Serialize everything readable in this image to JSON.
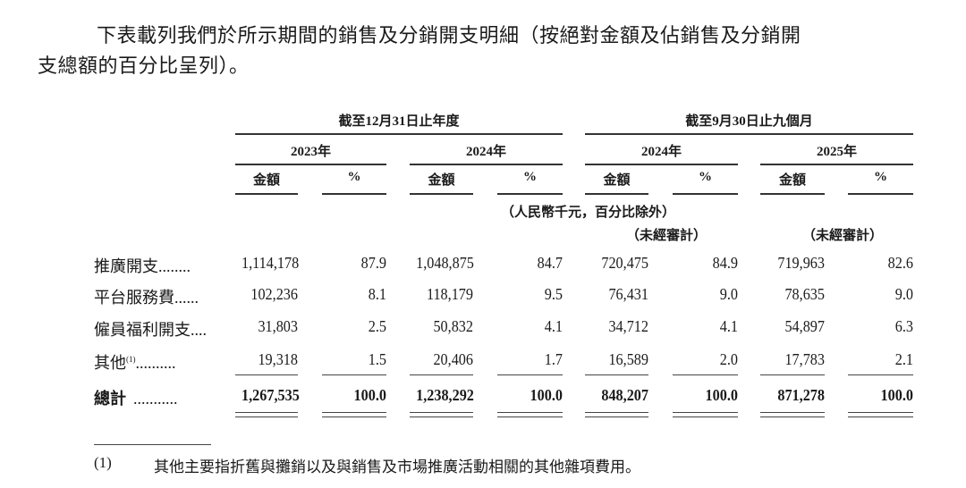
{
  "intro": {
    "line1": "下表載列我們於所示期間的銷售及分銷開支明細（按絕對金額及佔銷售及分銷開",
    "line2": "支總額的百分比呈列）。"
  },
  "table": {
    "period_headers": [
      "截至12月31日止年度",
      "截至9月30日止九個月"
    ],
    "year_headers": [
      "2023年",
      "2024年",
      "2024年",
      "2025年"
    ],
    "amount_label": "金額",
    "percent_label": "%",
    "unit_note": "（人民幣千元，百分比除外）",
    "unaudited_note": "（未經審計）",
    "rows": [
      {
        "label": "推廣開支",
        "dots": "........",
        "values": [
          "1,114,178",
          "87.9",
          "1,048,875",
          "84.7",
          "720,475",
          "84.9",
          "719,963",
          "82.6"
        ]
      },
      {
        "label": "平台服務費",
        "dots": "......",
        "values": [
          "102,236",
          "8.1",
          "118,179",
          "9.5",
          "76,431",
          "9.0",
          "78,635",
          "9.0"
        ]
      },
      {
        "label": "僱員福利開支",
        "dots": "....",
        "values": [
          "31,803",
          "2.5",
          "50,832",
          "4.1",
          "34,712",
          "4.1",
          "54,897",
          "6.3"
        ]
      },
      {
        "label": "其他",
        "sup": "(1)",
        "dots": "..........",
        "values": [
          "19,318",
          "1.5",
          "20,406",
          "1.7",
          "16,589",
          "2.0",
          "17,783",
          "2.1"
        ]
      }
    ],
    "total": {
      "label": "總計",
      "dots": "...........",
      "values": [
        "1,267,535",
        "100.0",
        "1,238,292",
        "100.0",
        "848,207",
        "100.0",
        "871,278",
        "100.0"
      ]
    }
  },
  "footnote": {
    "marker": "(1)",
    "text": "其他主要指折舊與攤銷以及與銷售及市場推廣活動相關的其他雜項費用。"
  }
}
